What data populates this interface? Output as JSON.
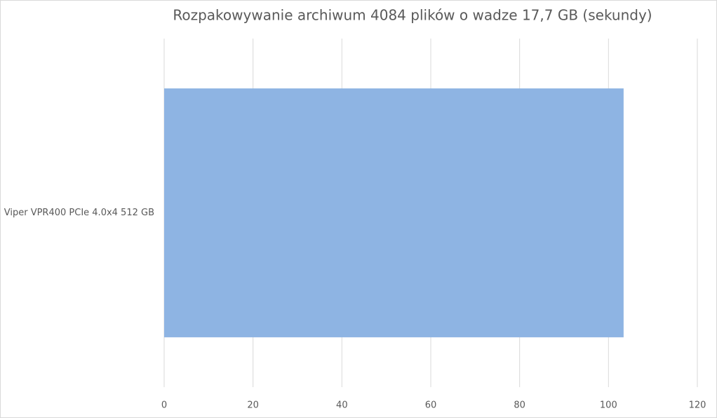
{
  "chart_data": {
    "type": "bar",
    "orientation": "horizontal",
    "title": "Rozpakowywanie archiwum 4084 plików o wadze 17,7 GB (sekundy)",
    "categories": [
      "Viper VPR400 PCIe 4.0x4 512 GB"
    ],
    "values": [
      103.4
    ],
    "color": "#8eb4e3",
    "xlim": [
      0,
      120
    ],
    "xticks": [
      0,
      20,
      40,
      60,
      80,
      100,
      120
    ],
    "grid": true
  }
}
